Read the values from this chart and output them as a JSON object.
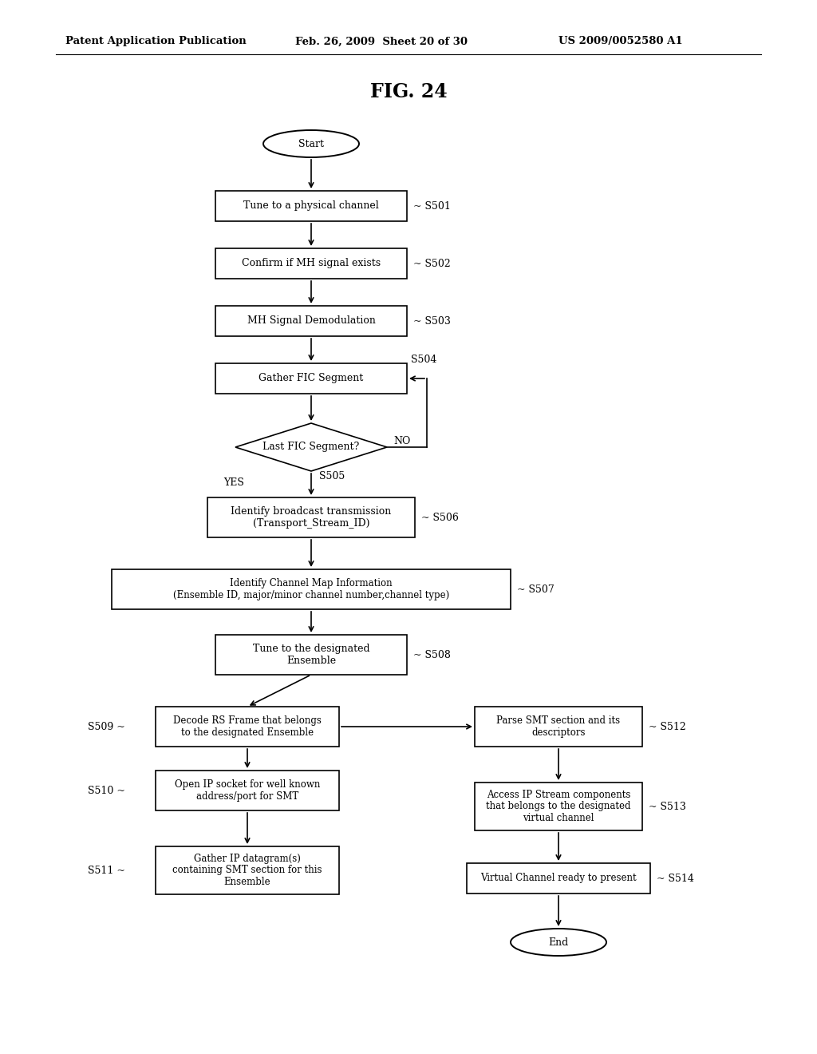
{
  "title": "FIG. 24",
  "header_left": "Patent Application Publication",
  "header_mid": "Feb. 26, 2009  Sheet 20 of 30",
  "header_right": "US 2009/0052580 A1",
  "bg_color": "#ffffff"
}
